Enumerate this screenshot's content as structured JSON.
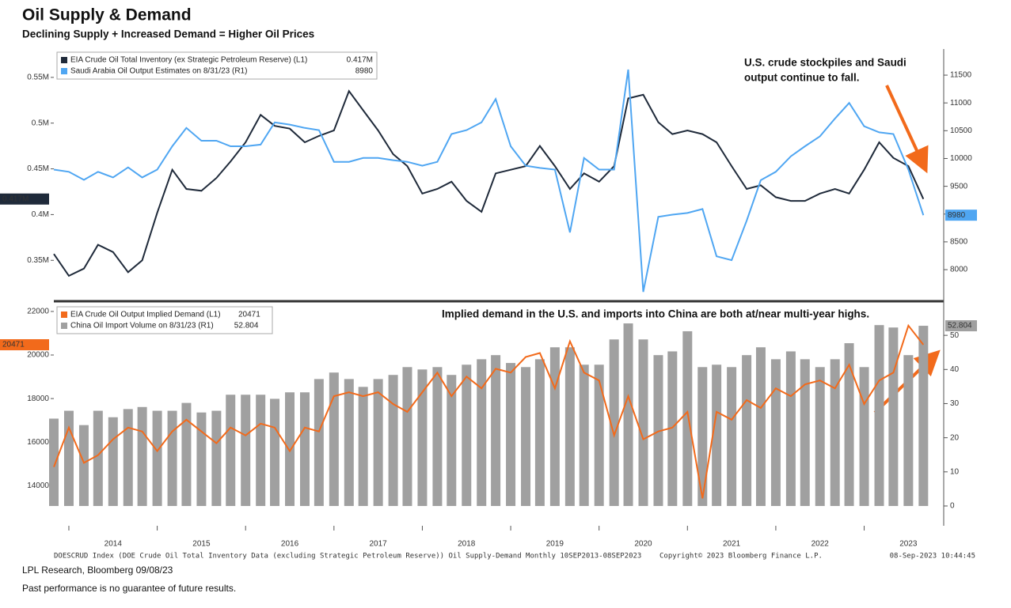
{
  "chart_data": [
    {
      "type": "line",
      "title": "Oil Supply & Demand",
      "subtitle": "Declining Supply + Increased Demand = Higher Oil Prices",
      "x": [
        2013.83,
        2014,
        2014.17,
        2014.33,
        2014.5,
        2014.67,
        2014.83,
        2015,
        2015.17,
        2015.33,
        2015.5,
        2015.67,
        2015.83,
        2016,
        2016.17,
        2016.33,
        2016.5,
        2016.67,
        2016.83,
        2017,
        2017.17,
        2017.33,
        2017.5,
        2017.67,
        2017.83,
        2018,
        2018.17,
        2018.33,
        2018.5,
        2018.67,
        2018.83,
        2019,
        2019.17,
        2019.33,
        2019.5,
        2019.67,
        2019.83,
        2020,
        2020.17,
        2020.33,
        2020.5,
        2020.67,
        2020.83,
        2021,
        2021.17,
        2021.33,
        2021.5,
        2021.67,
        2021.83,
        2022,
        2022.17,
        2022.33,
        2022.5,
        2022.67,
        2022.83,
        2023,
        2023.17,
        2023.33,
        2023.5,
        2023.67
      ],
      "xlim": [
        2013.83,
        2023.9
      ],
      "xticks": [
        2014,
        2015,
        2016,
        2017,
        2018,
        2019,
        2020,
        2021,
        2022,
        2023
      ],
      "ylim": [
        307000,
        581000
      ],
      "yticks": [
        {
          "value": 350000,
          "label": "0.35M"
        },
        {
          "value": 400000,
          "label": "0.4M"
        },
        {
          "value": 450000,
          "label": "0.45M"
        },
        {
          "value": 500000,
          "label": "0.5M"
        },
        {
          "value": 550000,
          "label": "0.55M"
        }
      ],
      "y2lim": [
        7460,
        11970
      ],
      "y2ticks": [
        8000,
        8500,
        9000,
        9500,
        10000,
        10500,
        11000,
        11500
      ],
      "annotation": [
        "U.S. crude stockpiles and Saudi",
        "output continue to fall."
      ],
      "series": [
        {
          "name": "EIA Crude Oil Total Inventory (ex Strategic Petroleum Reserve) (L1)",
          "color": "#1f2a3a",
          "last_label": "0.417M",
          "values": [
            357000,
            333000,
            341000,
            367000,
            359000,
            337000,
            350000,
            402000,
            449000,
            428000,
            426000,
            440000,
            458000,
            479000,
            509000,
            497000,
            494000,
            479000,
            486000,
            492000,
            535000,
            514000,
            492000,
            466000,
            453000,
            423000,
            428000,
            436000,
            415000,
            403000,
            445000,
            449000,
            453000,
            475000,
            453000,
            428000,
            445000,
            436000,
            453000,
            527000,
            531000,
            501000,
            488000,
            492000,
            488000,
            479000,
            453000,
            428000,
            432000,
            419000,
            415000,
            415000,
            423000,
            428000,
            423000,
            449000,
            479000,
            462000,
            453000,
            417000
          ]
        },
        {
          "name": "Saudi Arabia Oil Output Estimates on 8/31/23 (R1)",
          "color": "#4fa6f2",
          "axis": "y2",
          "last_label": "8980",
          "values": [
            9800,
            9760,
            9615,
            9760,
            9660,
            9840,
            9660,
            9800,
            10220,
            10550,
            10320,
            10320,
            10220,
            10220,
            10250,
            10650,
            10610,
            10550,
            10510,
            9940,
            9940,
            10010,
            10010,
            9970,
            9940,
            9870,
            9940,
            10440,
            10510,
            10650,
            11070,
            10220,
            9870,
            9830,
            9800,
            8670,
            10010,
            9800,
            9800,
            11600,
            7600,
            8950,
            8990,
            9020,
            9090,
            8240,
            8170,
            8880,
            9610,
            9760,
            10040,
            10220,
            10400,
            10720,
            11000,
            10580,
            10470,
            10440,
            9800,
            8980
          ]
        }
      ]
    },
    {
      "type": "combo",
      "x": [
        2013.83,
        2014,
        2014.17,
        2014.33,
        2014.5,
        2014.67,
        2014.83,
        2015,
        2015.17,
        2015.33,
        2015.5,
        2015.67,
        2015.83,
        2016,
        2016.17,
        2016.33,
        2016.5,
        2016.67,
        2016.83,
        2017,
        2017.17,
        2017.33,
        2017.5,
        2017.67,
        2017.83,
        2018,
        2018.17,
        2018.33,
        2018.5,
        2018.67,
        2018.83,
        2019,
        2019.17,
        2019.33,
        2019.5,
        2019.67,
        2019.83,
        2020,
        2020.17,
        2020.33,
        2020.5,
        2020.67,
        2020.83,
        2021,
        2021.17,
        2021.33,
        2021.5,
        2021.67,
        2021.83,
        2022,
        2022.17,
        2022.33,
        2022.5,
        2022.67,
        2022.83,
        2023,
        2023.17,
        2023.33,
        2023.5,
        2023.67
      ],
      "xlim": [
        2013.83,
        2023.9
      ],
      "xticks": [
        2014,
        2015,
        2016,
        2017,
        2018,
        2019,
        2020,
        2021,
        2022,
        2023
      ],
      "ylim": [
        12160,
        22360
      ],
      "yticks": [
        14000,
        16000,
        18000,
        20000,
        22000
      ],
      "y2lim": [
        -5.8,
        59.3
      ],
      "y2ticks": [
        0,
        10,
        20,
        30,
        40,
        50
      ],
      "annotation": "Implied demand in the U.S. and imports into China are both at/near multi-year highs.",
      "series": [
        {
          "name": "EIA Crude Oil Output Implied Demand (L1)",
          "type": "line",
          "color": "#f26a1b",
          "last_label": "20471",
          "values": [
            14860,
            16670,
            15050,
            15400,
            16130,
            16670,
            16490,
            15590,
            16490,
            17030,
            16490,
            15950,
            16670,
            16310,
            16850,
            16670,
            15590,
            16670,
            16490,
            18110,
            18290,
            18110,
            18290,
            17750,
            17390,
            18290,
            19190,
            18110,
            19010,
            18470,
            19370,
            19190,
            19910,
            20090,
            18470,
            20630,
            19190,
            18830,
            16310,
            18110,
            16130,
            16490,
            16670,
            17390,
            13420,
            17390,
            17030,
            17930,
            17570,
            18470,
            18110,
            18650,
            18830,
            18470,
            19550,
            17750,
            18830,
            19190,
            21350,
            20471
          ]
        },
        {
          "name": "China Oil Import Volume on 8/31/23 (R1)",
          "type": "bar",
          "color": "#a0a0a0",
          "axis": "y2",
          "last_label": "52.804",
          "values": [
            25.6,
            27.9,
            23.7,
            27.9,
            26,
            28.4,
            29,
            27.9,
            27.9,
            30.2,
            27.4,
            27.9,
            32.6,
            32.6,
            32.6,
            31.4,
            33.3,
            33.3,
            37.2,
            39.1,
            37.2,
            34.9,
            37.2,
            38.4,
            40.7,
            40,
            40.7,
            38.4,
            41.4,
            43,
            44.2,
            41.9,
            40.7,
            43,
            46.5,
            46.5,
            41.4,
            41.4,
            48.8,
            53.5,
            48.8,
            44.2,
            45.3,
            51.2,
            40.7,
            41.4,
            40.7,
            44.2,
            46.5,
            43,
            45.3,
            43,
            40.7,
            43,
            47.7,
            40.7,
            53,
            52.3,
            44.2,
            52.804
          ]
        }
      ]
    }
  ],
  "footer": {
    "source": "DOESCRUD Index (DOE Crude Oil Total Inventory Data (excluding Strategic Petroleum Reserve)) Oil Supply-Demand  Monthly 10SEP2013-08SEP2023",
    "copyright": "Copyright© 2023 Bloomberg Finance L.P.",
    "timestamp": "08-Sep-2023 10:44:45",
    "credit": "LPL Research, Bloomberg 09/08/23",
    "disclaimer": "Past performance is no guarantee of future results."
  }
}
